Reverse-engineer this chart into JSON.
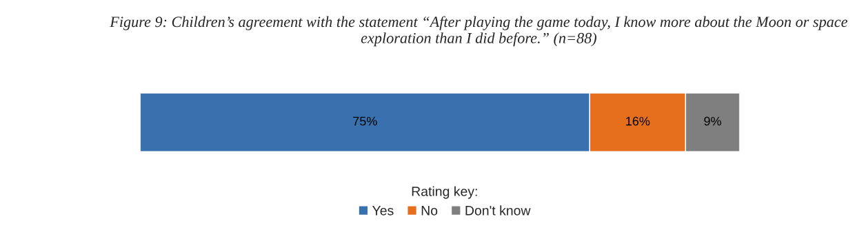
{
  "chart_data": {
    "type": "bar",
    "orientation": "horizontal",
    "stacked": true,
    "title": "Figure 9: Children’s agreement with the statement “After playing the game today, I know more about the Moon or space exploration than I did before.” (n=88)",
    "categories": [
      null
    ],
    "series": [
      {
        "name": "Yes",
        "color": "#3970ae",
        "values": [
          75
        ],
        "value_labels": [
          "75%"
        ]
      },
      {
        "name": "No",
        "color": "#e66f1e",
        "values": [
          16
        ],
        "value_labels": [
          "16%"
        ]
      },
      {
        "name": "Don't know",
        "color": "#7f7f7f",
        "values": [
          9
        ],
        "value_labels": [
          "9%"
        ]
      }
    ],
    "legend": "bottom",
    "legend_title": "Rating key:"
  }
}
